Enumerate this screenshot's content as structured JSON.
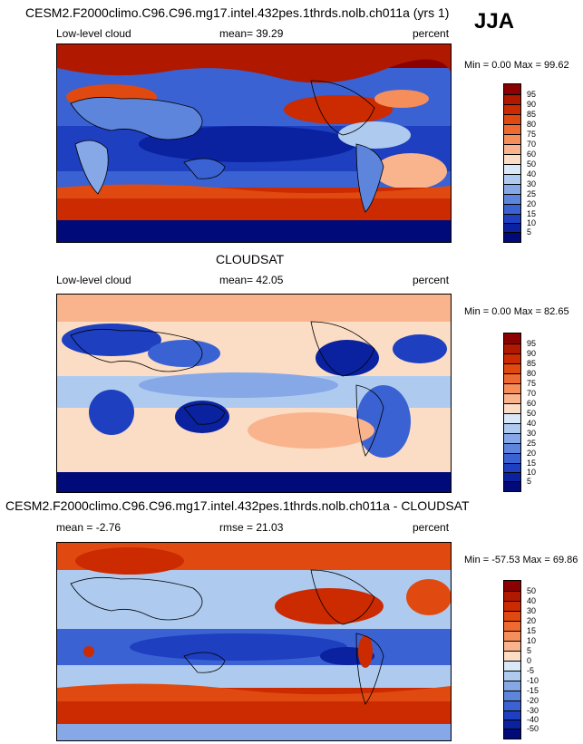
{
  "panels": [
    {
      "title": "CESM2.F2000climo.C96.C96.mg17.intel.432pes.1thrds.nolb.ch011a (yrs 1)",
      "left_label": "Low-level cloud",
      "center_label": "mean=  39.29",
      "right_label": "percent",
      "minmax": "Min =   0.00 Max =  99.62",
      "colorbar_labels": [
        "95",
        "90",
        "85",
        "80",
        "75",
        "70",
        "60",
        "50",
        "40",
        "30",
        "25",
        "20",
        "15",
        "10",
        "5"
      ],
      "colors": [
        "#8b0000",
        "#b01800",
        "#cc2a00",
        "#e04a10",
        "#ee6a30",
        "#f58e5a",
        "#f9b48e",
        "#fbdcc4",
        "#d8e8f8",
        "#aecbef",
        "#86a8e6",
        "#5d85dc",
        "#3a62d2",
        "#1d3fc0",
        "#0a22a0",
        "#000a78"
      ]
    },
    {
      "title": "CLOUDSAT",
      "left_label": "Low-level cloud",
      "center_label": "mean=  42.05",
      "right_label": "percent",
      "minmax": "Min =   0.00 Max =  82.65",
      "colorbar_labels": [
        "95",
        "90",
        "85",
        "80",
        "75",
        "70",
        "60",
        "50",
        "40",
        "30",
        "25",
        "20",
        "15",
        "10",
        "5"
      ],
      "colors": [
        "#8b0000",
        "#b01800",
        "#cc2a00",
        "#e04a10",
        "#ee6a30",
        "#f58e5a",
        "#f9b48e",
        "#fbdcc4",
        "#d8e8f8",
        "#aecbef",
        "#86a8e6",
        "#5d85dc",
        "#3a62d2",
        "#1d3fc0",
        "#0a22a0",
        "#000a78"
      ]
    },
    {
      "title": "CESM2.F2000climo.C96.C96.mg17.intel.432pes.1thrds.nolb.ch011a - CLOUDSAT",
      "left_label": "mean =  -2.76",
      "center_label": "rmse =  21.03",
      "right_label": "percent",
      "minmax": "Min = -57.53 Max =  69.86",
      "colorbar_labels": [
        "50",
        "40",
        "30",
        "20",
        "15",
        "10",
        "5",
        "0",
        "-5",
        "-10",
        "-15",
        "-20",
        "-30",
        "-40",
        "-50"
      ],
      "colors": [
        "#8b0000",
        "#b01800",
        "#cc2a00",
        "#e04a10",
        "#ee6a30",
        "#f58e5a",
        "#f9b48e",
        "#fbdcc4",
        "#d8e8f8",
        "#aecbef",
        "#86a8e6",
        "#5d85dc",
        "#3a62d2",
        "#1d3fc0",
        "#0a22a0",
        "#000a78"
      ]
    }
  ],
  "season": "JJA"
}
